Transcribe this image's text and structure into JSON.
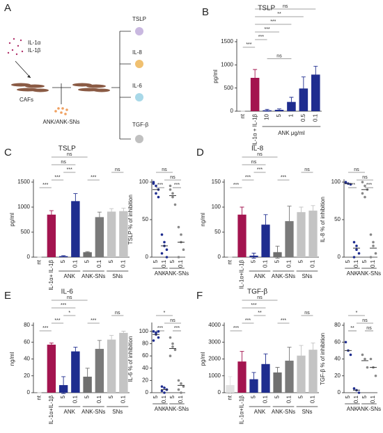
{
  "diagram": {
    "label": "A",
    "inputs": [
      "IL-1α",
      "IL-1β"
    ],
    "cells": "CAFs",
    "treatment": "ANK/ANK-SNs",
    "outputs": [
      "TSLP",
      "IL-8",
      "IL-6",
      "TGF-β"
    ]
  },
  "chart_data": [
    {
      "type": "bar",
      "label": "B",
      "title": "TSLP",
      "y_label": "pg/ml",
      "x_label": "ANK μg/ml",
      "categories": [
        "nt",
        "IL-1α + IL-1β",
        "10",
        "5",
        "1",
        "0.5",
        "0.1"
      ],
      "values": [
        0,
        720,
        20,
        30,
        200,
        490,
        790
      ],
      "errors": [
        0,
        180,
        20,
        20,
        100,
        250,
        180
      ],
      "colors": [
        "#bbbbbb",
        "#a3144f",
        "#1f2d8f",
        "#1f2d8f",
        "#1f2d8f",
        "#1f2d8f",
        "#1f2d8f"
      ],
      "ylim": [
        0,
        1500
      ],
      "yticks": [
        0,
        500,
        1000,
        1500
      ],
      "significance": [
        "***",
        "***",
        "***",
        "***",
        "**",
        "ns",
        "ns"
      ]
    },
    {
      "type": "bar",
      "label": "C",
      "title": "TSLP",
      "y_label": "pg/ml",
      "categories": [
        "nt",
        "IL-1α+ IL-1β",
        "5",
        "0.1",
        "5",
        "0.1",
        "5",
        "0.1"
      ],
      "groups": [
        "ANK",
        "ANK-SNs",
        "SNs"
      ],
      "values": [
        0,
        850,
        20,
        1120,
        100,
        800,
        910,
        920
      ],
      "errors": [
        0,
        80,
        10,
        150,
        10,
        100,
        60,
        60
      ],
      "colors": [
        "#bbbbbb",
        "#a3144f",
        "#1f2d8f",
        "#1f2d8f",
        "#6f6f6f",
        "#7a7a7a",
        "#c4c4c4",
        "#c4c4c4"
      ],
      "ylim": [
        0,
        1500
      ],
      "yticks": [
        0,
        500,
        1000,
        1500
      ],
      "significance": [
        "***",
        "***",
        "***",
        "ns",
        "ns",
        "***",
        "ns"
      ]
    },
    {
      "type": "scatter",
      "y_label": "TSLP % of inhibition",
      "categories": [
        "5",
        "0.1",
        "5",
        "0.1"
      ],
      "groups": [
        "ANK",
        "ANK-SNs"
      ],
      "points": [
        [
          100,
          95,
          90,
          98,
          85,
          80
        ],
        [
          30,
          20,
          10,
          5,
          15,
          0
        ],
        [
          90,
          85,
          70,
          95,
          80
        ],
        [
          40,
          20,
          10,
          0,
          30
        ]
      ],
      "means": [
        90,
        15,
        82,
        20
      ],
      "colors": [
        "#1f2d8f",
        "#1f2d8f",
        "#888888",
        "#888888"
      ],
      "ylim": [
        0,
        100
      ],
      "yticks": [
        0,
        50,
        100
      ],
      "significance": [
        "***",
        "***",
        "ns",
        "ns"
      ]
    },
    {
      "type": "bar",
      "label": "D",
      "title": "IL-8",
      "y_label": "ng/ml",
      "categories": [
        "nt",
        "IL-1α+IL-1β",
        "5",
        "0.1",
        "5",
        "0.1",
        "5",
        "0.1"
      ],
      "groups": [
        "ANK",
        "ANK-SNs",
        "SNs"
      ],
      "values": [
        0,
        85,
        3,
        65,
        10,
        72,
        90,
        93
      ],
      "errors": [
        0,
        15,
        5,
        20,
        12,
        30,
        10,
        10
      ],
      "colors": [
        "#bbbbbb",
        "#a3144f",
        "#1f2d8f",
        "#1f2d8f",
        "#6f6f6f",
        "#7a7a7a",
        "#c4c4c4",
        "#c4c4c4"
      ],
      "ylim": [
        0,
        150
      ],
      "yticks": [
        0,
        50,
        100,
        150
      ],
      "significance": [
        "***",
        "***",
        "***",
        "ns",
        "ns",
        "***",
        "ns"
      ]
    },
    {
      "type": "scatter",
      "y_label": "IL-8 % of inhibition",
      "categories": [
        "5",
        "0.1",
        "5",
        "0.1"
      ],
      "groups": [
        "ANK",
        "ANK-SNs"
      ],
      "points": [
        [
          100,
          98,
          97,
          99
        ],
        [
          20,
          15,
          5,
          0,
          10
        ],
        [
          100,
          95,
          90,
          85,
          80
        ],
        [
          30,
          15,
          5,
          0,
          20
        ]
      ],
      "means": [
        98,
        12,
        90,
        12
      ],
      "colors": [
        "#1f2d8f",
        "#1f2d8f",
        "#888888",
        "#888888"
      ],
      "ylim": [
        0,
        100
      ],
      "yticks": [
        0,
        50,
        100
      ],
      "significance": [
        "***",
        "***",
        "ns",
        "ns"
      ]
    },
    {
      "type": "bar",
      "label": "E",
      "title": "IL-6",
      "y_label": "ng/ml",
      "categories": [
        "nt",
        "IL-1α+IL-1β",
        "5",
        "0.1",
        "5",
        "0.1",
        "5",
        "0.1"
      ],
      "groups": [
        "ANK",
        "ANK-SNs",
        "SNs"
      ],
      "values": [
        0,
        57,
        9,
        49,
        19,
        52,
        63,
        71
      ],
      "errors": [
        0,
        2,
        10,
        5,
        10,
        10,
        5,
        2
      ],
      "colors": [
        "#bbbbbb",
        "#a3144f",
        "#1f2d8f",
        "#1f2d8f",
        "#6f6f6f",
        "#7a7a7a",
        "#c4c4c4",
        "#c4c4c4"
      ],
      "ylim": [
        0,
        80
      ],
      "yticks": [
        0,
        20,
        40,
        60,
        80
      ],
      "significance": [
        "***",
        "***",
        "*",
        "***",
        "ns",
        "***",
        "ns"
      ]
    },
    {
      "type": "scatter",
      "y_label": "IL-6 % of inhibition",
      "categories": [
        "5",
        "0.1",
        "5",
        "0.1"
      ],
      "groups": [
        "ANK",
        "ANK-SNs"
      ],
      "points": [
        [
          100,
          95,
          90,
          85,
          98,
          100
        ],
        [
          10,
          8,
          5,
          3,
          0,
          5
        ],
        [
          90,
          80,
          70,
          60,
          75
        ],
        [
          20,
          15,
          10,
          5,
          0
        ]
      ],
      "means": [
        95,
        5,
        72,
        12
      ],
      "colors": [
        "#1f2d8f",
        "#1f2d8f",
        "#888888",
        "#888888"
      ],
      "ylim": [
        0,
        110
      ],
      "yticks": [
        0,
        20,
        40,
        60,
        80,
        100
      ],
      "significance": [
        "***",
        "***",
        "ns",
        "*"
      ]
    },
    {
      "type": "bar",
      "label": "F",
      "title": "TGF-β",
      "y_label": "pg/ml",
      "categories": [
        "nt",
        "IL-1α+IL-1β",
        "5",
        "0.1",
        "5",
        "0.1",
        "5",
        "0.1"
      ],
      "groups": [
        "ANK",
        "ANK-SNs",
        "SNs"
      ],
      "values": [
        450,
        1850,
        800,
        1700,
        1200,
        1900,
        2200,
        2550
      ],
      "errors": [
        500,
        600,
        400,
        600,
        300,
        800,
        600,
        400
      ],
      "colors": [
        "#e2e2e2",
        "#a3144f",
        "#1f2d8f",
        "#1f2d8f",
        "#6f6f6f",
        "#7a7a7a",
        "#c4c4c4",
        "#c4c4c4"
      ],
      "ylim": [
        0,
        4000
      ],
      "yticks": [
        0,
        1000,
        2000,
        3000,
        4000
      ],
      "significance": [
        "***",
        "***",
        "**",
        "***",
        "ns",
        "***",
        "ns"
      ]
    },
    {
      "type": "scatter",
      "y_label": "TGF-β % of inhibition",
      "categories": [
        "5",
        "0.1",
        "5",
        "0.1"
      ],
      "groups": [
        "ANK",
        "ANK-SNs"
      ],
      "points": [
        [
          60,
          50,
          45
        ],
        [
          5,
          3,
          0
        ],
        [
          45,
          40,
          30
        ],
        [
          40,
          30,
          20
        ]
      ],
      "means": [
        50,
        3,
        38,
        30
      ],
      "colors": [
        "#1f2d8f",
        "#1f2d8f",
        "#888888",
        "#888888"
      ],
      "ylim": [
        0,
        80
      ],
      "yticks": [
        0,
        20,
        40,
        60,
        80
      ],
      "significance": [
        "**",
        "ns",
        "ns",
        "*"
      ]
    }
  ]
}
